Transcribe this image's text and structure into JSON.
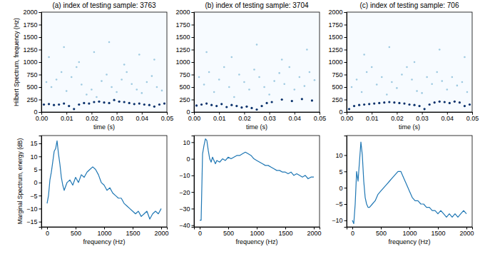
{
  "chart_data": [
    {
      "type": "scatter",
      "title": "(a) index of testing sample: 3763",
      "xlabel": "time (s)",
      "ylabel": "Hilbert Spectrum, frequency (Hz)",
      "xlim": [
        0,
        0.05
      ],
      "xticks": [
        {
          "value": 0,
          "label": "0.00"
        },
        {
          "value": 0.01,
          "label": "0.01"
        },
        {
          "value": 0.02,
          "label": "0.02"
        },
        {
          "value": 0.03,
          "label": "0.03"
        },
        {
          "value": 0.04,
          "label": "0.04"
        },
        {
          "value": 0.05,
          "label": "0.05"
        }
      ],
      "ylim": [
        0,
        2000
      ],
      "yticks": [
        0,
        250,
        500,
        750,
        1000,
        1250,
        1500,
        1750,
        2000
      ],
      "series": [
        {
          "color": "#08306b",
          "x": [
            0.001,
            0.003,
            0.005,
            0.007,
            0.009,
            0.011,
            0.013,
            0.015,
            0.017,
            0.019,
            0.021,
            0.023,
            0.025,
            0.027,
            0.029,
            0.031,
            0.033,
            0.035,
            0.037,
            0.039,
            0.041,
            0.043,
            0.045,
            0.047,
            0.049
          ],
          "values": [
            150,
            160,
            140,
            150,
            170,
            120,
            60,
            150,
            180,
            170,
            200,
            210,
            190,
            180,
            240,
            210,
            200,
            180,
            160,
            170,
            150,
            140,
            110,
            150,
            170
          ]
        },
        {
          "color": "#9ecae1",
          "x": [
            0.002,
            0.004,
            0.006,
            0.008,
            0.01,
            0.012,
            0.014,
            0.016,
            0.018,
            0.02,
            0.022,
            0.024,
            0.026,
            0.028,
            0.03,
            0.032,
            0.034,
            0.036,
            0.038,
            0.04,
            0.042,
            0.044,
            0.046,
            0.048,
            0.003,
            0.009,
            0.015,
            0.021,
            0.027,
            0.033,
            0.039,
            0.045
          ],
          "values": [
            600,
            500,
            650,
            800,
            420,
            700,
            900,
            550,
            350,
            450,
            300,
            620,
            750,
            500,
            400,
            650,
            800,
            560,
            450,
            380,
            600,
            720,
            500,
            430,
            1100,
            1300,
            1000,
            1200,
            1400,
            950,
            1150,
            1050
          ]
        }
      ]
    },
    {
      "type": "scatter",
      "title": "(b) index of testing sample: 3704",
      "xlabel": "time (s)",
      "xlim": [
        0,
        0.05
      ],
      "xticks": [
        {
          "value": 0,
          "label": "0.00"
        },
        {
          "value": 0.01,
          "label": "0.01"
        },
        {
          "value": 0.02,
          "label": "0.02"
        },
        {
          "value": 0.03,
          "label": "0.03"
        },
        {
          "value": 0.04,
          "label": "0.04"
        },
        {
          "value": 0.05,
          "label": "0.05"
        }
      ],
      "ylim": [
        0,
        2000
      ],
      "yticks": [
        0,
        250,
        500,
        750,
        1000,
        1250,
        1500,
        1750,
        2000
      ],
      "series": [
        {
          "color": "#08306b",
          "x": [
            0.001,
            0.003,
            0.005,
            0.007,
            0.009,
            0.011,
            0.013,
            0.015,
            0.017,
            0.019,
            0.021,
            0.023,
            0.025,
            0.027,
            0.029,
            0.031,
            0.035,
            0.039,
            0.043,
            0.047
          ],
          "values": [
            130,
            150,
            170,
            140,
            120,
            160,
            100,
            140,
            120,
            90,
            110,
            80,
            50,
            120,
            180,
            200,
            250,
            220,
            260,
            230
          ]
        },
        {
          "color": "#9ecae1",
          "x": [
            0.002,
            0.004,
            0.006,
            0.008,
            0.01,
            0.012,
            0.014,
            0.016,
            0.018,
            0.02,
            0.022,
            0.024,
            0.026,
            0.028,
            0.03,
            0.032,
            0.034,
            0.036,
            0.038,
            0.04,
            0.042,
            0.044,
            0.046,
            0.048,
            0.005,
            0.015,
            0.025,
            0.035,
            0.045
          ],
          "values": [
            700,
            550,
            800,
            400,
            650,
            900,
            500,
            300,
            750,
            600,
            450,
            850,
            700,
            500,
            350,
            620,
            780,
            560,
            900,
            450,
            700,
            520,
            800,
            640,
            1200,
            1100,
            1350,
            1050,
            1250
          ]
        }
      ]
    },
    {
      "type": "scatter",
      "title": "(c) index of testing sample: 706",
      "xlabel": "time (s)",
      "xlim": [
        0,
        0.05
      ],
      "xticks": [
        {
          "value": 0,
          "label": "0.00"
        },
        {
          "value": 0.01,
          "label": "0.01"
        },
        {
          "value": 0.02,
          "label": "0.02"
        },
        {
          "value": 0.03,
          "label": "0.03"
        },
        {
          "value": 0.04,
          "label": "0.04"
        },
        {
          "value": 0.05,
          "label": "0.05"
        }
      ],
      "ylim": [
        0,
        2000
      ],
      "yticks": [
        0,
        250,
        500,
        750,
        1000,
        1250,
        1500,
        1750,
        2000
      ],
      "series": [
        {
          "color": "#08306b",
          "x": [
            0.001,
            0.003,
            0.005,
            0.007,
            0.009,
            0.011,
            0.013,
            0.015,
            0.017,
            0.019,
            0.021,
            0.023,
            0.025,
            0.027,
            0.029,
            0.031,
            0.033,
            0.035,
            0.037,
            0.039,
            0.041,
            0.043,
            0.045,
            0.047,
            0.049
          ],
          "values": [
            60,
            120,
            140,
            150,
            160,
            170,
            180,
            190,
            200,
            190,
            180,
            170,
            150,
            140,
            120,
            60,
            150,
            190,
            210,
            200,
            180,
            210,
            190,
            120,
            150
          ]
        },
        {
          "color": "#9ecae1",
          "x": [
            0.002,
            0.004,
            0.006,
            0.008,
            0.01,
            0.012,
            0.014,
            0.016,
            0.018,
            0.02,
            0.022,
            0.024,
            0.026,
            0.028,
            0.03,
            0.032,
            0.034,
            0.036,
            0.038,
            0.04,
            0.042,
            0.044,
            0.046,
            0.048,
            0.007,
            0.017,
            0.027,
            0.037,
            0.047
          ],
          "values": [
            500,
            650,
            400,
            800,
            900,
            550,
            700,
            350,
            600,
            480,
            750,
            900,
            650,
            420,
            380,
            700,
            560,
            800,
            620,
            450,
            700,
            530,
            600,
            400,
            1150,
            1300,
            1000,
            1250,
            1100
          ]
        }
      ]
    },
    {
      "type": "line",
      "xlabel": "frequency (Hz)",
      "ylabel": "Marginal Spectrum, energy (dB)",
      "color": "#1f77b4",
      "xlim": [
        -100,
        2100
      ],
      "xticks": [
        0,
        500,
        1000,
        1500,
        2000
      ],
      "ylim": [
        -17,
        18
      ],
      "yticks": [
        {
          "value": -15,
          "label": "−15"
        },
        {
          "value": -10,
          "label": "−10"
        },
        {
          "value": -5,
          "label": "−5"
        },
        0,
        5,
        10,
        15
      ],
      "x": [
        0,
        25,
        50,
        75,
        100,
        125,
        150,
        175,
        200,
        225,
        250,
        275,
        300,
        350,
        400,
        450,
        500,
        550,
        600,
        650,
        700,
        750,
        800,
        850,
        900,
        950,
        1000,
        1050,
        1100,
        1150,
        1200,
        1250,
        1300,
        1350,
        1400,
        1450,
        1500,
        1550,
        1600,
        1650,
        1700,
        1750,
        1800,
        1850,
        1900,
        1950,
        2000
      ],
      "values": [
        -8,
        -5,
        1,
        4,
        8,
        12,
        13,
        16,
        11,
        7,
        2,
        -1,
        -3,
        0,
        1,
        -1,
        2,
        0,
        3,
        2,
        4,
        5,
        6,
        5,
        3,
        0,
        -1,
        -3,
        -2,
        -4,
        -5,
        -6,
        -6,
        -8,
        -9,
        -10,
        -11,
        -12,
        -11,
        -13,
        -12,
        -11,
        -14,
        -12,
        -11,
        -12,
        -10
      ]
    },
    {
      "type": "line",
      "xlabel": "frequency (Hz)",
      "color": "#1f77b4",
      "xlim": [
        -100,
        2100
      ],
      "xticks": [
        0,
        500,
        1000,
        1500,
        2000
      ],
      "ylim": [
        -41,
        14
      ],
      "yticks": [
        {
          "value": -40,
          "label": "−40"
        },
        {
          "value": -30,
          "label": "−30"
        },
        {
          "value": -20,
          "label": "−20"
        },
        {
          "value": -10,
          "label": "−10"
        },
        0,
        10
      ],
      "x": [
        0,
        25,
        50,
        75,
        100,
        125,
        150,
        175,
        200,
        225,
        250,
        275,
        300,
        350,
        400,
        450,
        500,
        550,
        600,
        650,
        700,
        750,
        800,
        850,
        900,
        950,
        1000,
        1050,
        1100,
        1150,
        1200,
        1250,
        1300,
        1350,
        1400,
        1450,
        1500,
        1550,
        1600,
        1650,
        1700,
        1750,
        1800,
        1850,
        1900,
        1950,
        2000
      ],
      "values": [
        -37,
        -37,
        3,
        8,
        12,
        11,
        5,
        0,
        -2,
        1,
        -1,
        -3,
        -1,
        -2,
        0,
        -1,
        1,
        0,
        1,
        2,
        2,
        3,
        4,
        3,
        2,
        0,
        -1,
        -2,
        -3,
        -4,
        -4,
        -5,
        -6,
        -7,
        -7,
        -8,
        -8,
        -9,
        -8,
        -10,
        -9,
        -10,
        -11,
        -10,
        -12,
        -11,
        -11
      ]
    },
    {
      "type": "line",
      "xlabel": "frequency (Hz)",
      "color": "#1f77b4",
      "xlim": [
        -100,
        2100
      ],
      "xticks": [
        0,
        500,
        1000,
        1500,
        2000
      ],
      "ylim": [
        -12,
        16
      ],
      "yticks": [
        {
          "value": -10,
          "label": "−10"
        },
        {
          "value": -5,
          "label": "−5"
        },
        0,
        5,
        10
      ],
      "x": [
        0,
        25,
        50,
        75,
        100,
        125,
        150,
        175,
        200,
        225,
        250,
        275,
        300,
        350,
        400,
        450,
        500,
        550,
        600,
        650,
        700,
        750,
        800,
        850,
        900,
        950,
        1000,
        1050,
        1100,
        1150,
        1200,
        1250,
        1300,
        1350,
        1400,
        1450,
        1500,
        1550,
        1600,
        1650,
        1700,
        1750,
        1800,
        1850,
        1900,
        1950,
        2000
      ],
      "values": [
        -10,
        -11,
        -5,
        5,
        2,
        8,
        14,
        10,
        2,
        -3,
        -5,
        -6,
        -6,
        -5,
        -4,
        -2,
        -1,
        0,
        1,
        2,
        3,
        4,
        5,
        5,
        3,
        1,
        -1,
        -3,
        -4,
        -4,
        -5,
        -5,
        -6,
        -6,
        -7,
        -7,
        -8,
        -7,
        -8,
        -9,
        -8,
        -9,
        -8,
        -9,
        -8,
        -7,
        -8
      ]
    }
  ]
}
